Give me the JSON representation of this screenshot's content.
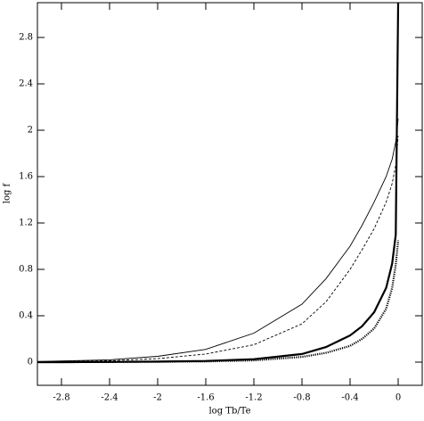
{
  "chart_data": {
    "type": "line",
    "xlabel": "log Tb/Te",
    "ylabel": "log f",
    "x": [
      -3,
      -2.8,
      -2.4,
      -2,
      -1.6,
      -1.2,
      -0.8,
      -0.6,
      -0.4,
      -0.3,
      -0.2,
      -0.1,
      -0.05,
      -0.02,
      0
    ],
    "series": [
      {
        "color": "#000",
        "style": "solid",
        "width": 0.9,
        "values": [
          0.005,
          0.01,
          0.02,
          0.05,
          0.11,
          0.25,
          0.5,
          0.72,
          1.0,
          1.18,
          1.38,
          1.6,
          1.75,
          1.9,
          2.1
        ]
      },
      {
        "color": "#000",
        "style": "dashed",
        "width": 0.9,
        "values": [
          0.003,
          0.006,
          0.012,
          0.03,
          0.07,
          0.15,
          0.33,
          0.52,
          0.8,
          0.97,
          1.15,
          1.38,
          1.54,
          1.7,
          1.95
        ]
      },
      {
        "color": "#000",
        "style": "solid",
        "width": 2.2,
        "values": [
          0,
          0,
          0.002,
          0.005,
          0.01,
          0.025,
          0.07,
          0.13,
          0.23,
          0.31,
          0.43,
          0.64,
          0.85,
          1.1,
          3.1
        ]
      },
      {
        "color": "#000",
        "style": "dotted",
        "width": 2.2,
        "values": [
          0,
          0,
          0.001,
          0.003,
          0.006,
          0.015,
          0.045,
          0.08,
          0.14,
          0.2,
          0.29,
          0.46,
          0.64,
          0.84,
          1.05
        ]
      }
    ],
    "xlim": [
      -3,
      0.2
    ],
    "xticks": [
      -2.8,
      -2.4,
      -2,
      -1.6,
      -1.2,
      -0.8,
      -0.4,
      0
    ],
    "ylim": [
      -0.2,
      3.1
    ],
    "yticks": [
      0,
      0.4,
      0.8,
      1.2,
      1.6,
      2,
      2.4,
      2.8
    ]
  }
}
